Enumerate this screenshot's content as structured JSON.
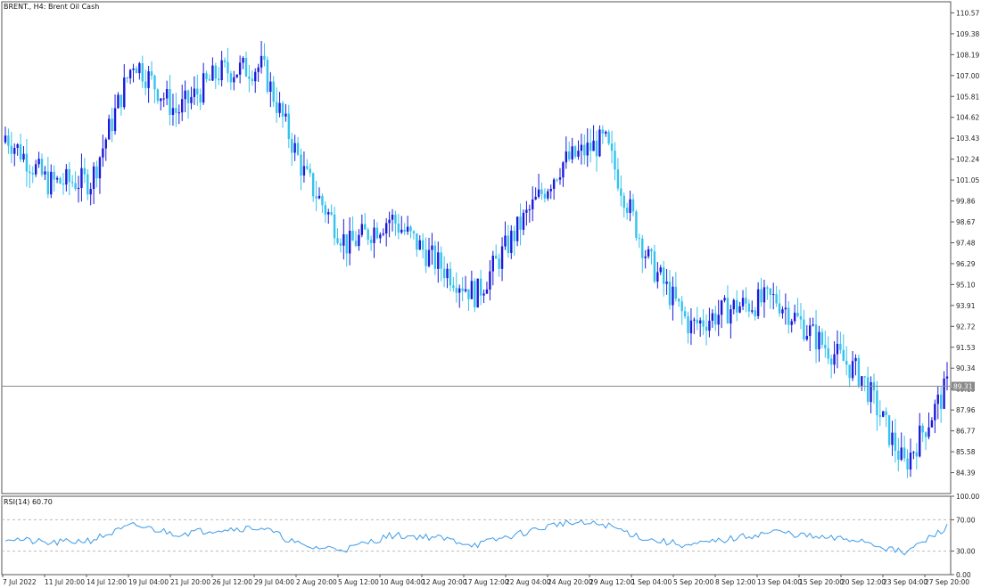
{
  "window": {
    "symbol": "BRENT.,",
    "timeframe": "H4:",
    "description": "Brent Oil Cash"
  },
  "price_panel": {
    "price_ticks": [
      "110.57",
      "109.38",
      "108.19",
      "107.00",
      "105.81",
      "104.62",
      "103.43",
      "102.24",
      "101.05",
      "99.86",
      "98.67",
      "97.48",
      "96.29",
      "95.10",
      "93.91",
      "92.72",
      "91.53",
      "90.34",
      "89.15",
      "87.96",
      "86.77",
      "85.58",
      "84.39"
    ],
    "current_price_label": "89.31",
    "colors": {
      "bull": "#1a1adc",
      "bear": "#35c2ee",
      "hline": "#8a8a8a",
      "price_tag_bg": "#8a8a8a"
    }
  },
  "rsi_panel": {
    "label": "RSI(14) 60.70",
    "ticks": [
      "100.00",
      "70.00",
      "30.00",
      "0.00"
    ],
    "line_color": "#3a9ae8"
  },
  "time_axis": {
    "labels": [
      "7 Jul 2022",
      "11 Jul 20:00",
      "14 Jul 12:00",
      "19 Jul 04:00",
      "21 Jul 20:00",
      "26 Jul 12:00",
      "29 Jul 04:00",
      "2 Aug 20:00",
      "5 Aug 12:00",
      "10 Aug 04:00",
      "12 Aug 20:00",
      "17 Aug 12:00",
      "22 Aug 04:00",
      "24 Aug 20:00",
      "29 Aug 12:00",
      "1 Sep 04:00",
      "5 Sep 20:00",
      "8 Sep 12:00",
      "13 Sep 04:00",
      "15 Sep 20:00",
      "20 Sep 12:00",
      "23 Sep 04:00",
      "27 Sep 20:00"
    ]
  },
  "chart_data": [
    {
      "type": "candlestick",
      "title": "BRENT., H4: Brent Oil Cash",
      "x": [
        "7 Jul 2022",
        "11 Jul 20:00",
        "14 Jul 12:00",
        "19 Jul 04:00",
        "21 Jul 20:00",
        "26 Jul 12:00",
        "29 Jul 04:00",
        "2 Aug 20:00",
        "5 Aug 12:00",
        "10 Aug 04:00",
        "12 Aug 20:00",
        "17 Aug 12:00",
        "22 Aug 04:00",
        "24 Aug 20:00",
        "29 Aug 12:00",
        "1 Sep 04:00",
        "5 Sep 20:00",
        "8 Sep 12:00",
        "13 Sep 04:00",
        "15 Sep 20:00",
        "20 Sep 12:00",
        "23 Sep 04:00",
        "27 Sep 20:00"
      ],
      "close_approx": [
        103.6,
        100.9,
        101.0,
        107.9,
        104.9,
        107.2,
        107.5,
        101.3,
        97.3,
        98.9,
        96.5,
        94.5,
        98.4,
        102.0,
        103.3,
        96.6,
        92.7,
        93.8,
        94.3,
        91.9,
        89.9,
        84.8,
        89.3
      ],
      "ylim": [
        83.2,
        111.2
      ],
      "last_price": 89.31,
      "grid": false
    },
    {
      "type": "line",
      "title": "RSI(14) 60.70",
      "x": [
        "7 Jul 2022",
        "11 Jul 20:00",
        "14 Jul 12:00",
        "19 Jul 04:00",
        "21 Jul 20:00",
        "26 Jul 12:00",
        "29 Jul 04:00",
        "2 Aug 20:00",
        "5 Aug 12:00",
        "10 Aug 04:00",
        "12 Aug 20:00",
        "17 Aug 12:00",
        "22 Aug 04:00",
        "24 Aug 20:00",
        "29 Aug 12:00",
        "1 Sep 04:00",
        "5 Sep 20:00",
        "8 Sep 12:00",
        "13 Sep 04:00",
        "15 Sep 20:00",
        "20 Sep 12:00",
        "23 Sep 04:00",
        "27 Sep 20:00"
      ],
      "values": [
        47,
        40,
        44,
        63,
        52,
        58,
        60,
        35,
        33,
        50,
        48,
        38,
        52,
        66,
        64,
        45,
        37,
        46,
        55,
        47,
        44,
        27,
        60.7
      ],
      "ylim": [
        0,
        100
      ],
      "levels": [
        70,
        30
      ]
    }
  ]
}
